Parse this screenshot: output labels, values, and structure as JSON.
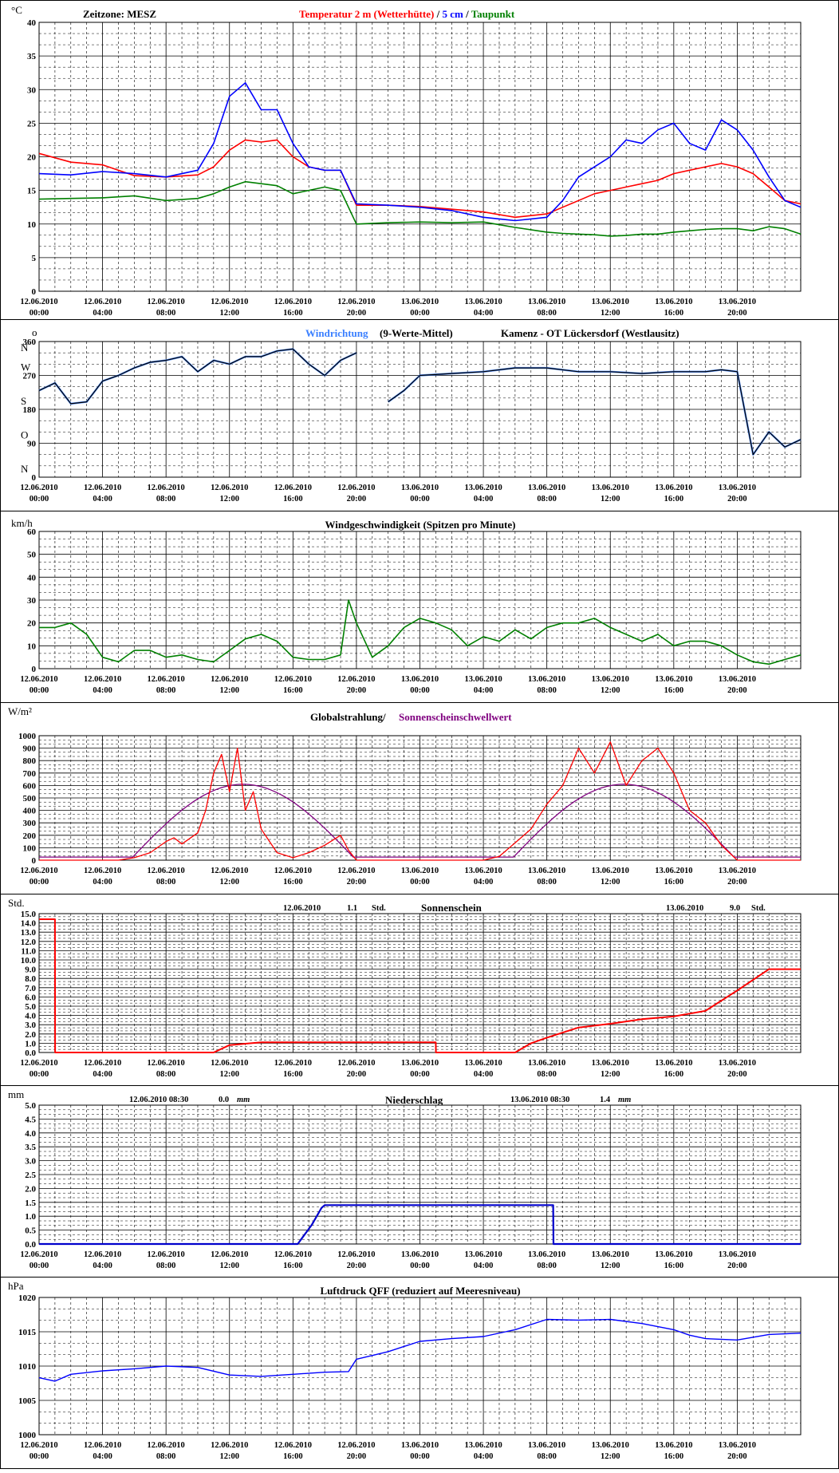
{
  "page": {
    "station": "Kamenz - OT Lückersdorf (Westlausitz)"
  },
  "x_axis": {
    "dates": [
      "12.06.2010",
      "12.06.2010",
      "12.06.2010",
      "12.06.2010",
      "12.06.2010",
      "12.06.2010",
      "13.06.2010",
      "13.06.2010",
      "13.06.2010",
      "13.06.2010",
      "13.06.2010",
      "13.06.2010"
    ],
    "times": [
      "00:00",
      "04:00",
      "08:00",
      "12:00",
      "16:00",
      "20:00",
      "00:00",
      "04:00",
      "08:00",
      "12:00",
      "16:00",
      "20:00"
    ]
  },
  "colors": {
    "temp2m": "#ff0000",
    "temp5cm": "#0000ff",
    "dewpoint": "#008000",
    "winddir_raw": "#3a7fff",
    "winddir_mean": "#000000",
    "wind": "#008000",
    "radiation": "#ff0000",
    "threshold": "#800080",
    "sunshine": "#ff0000",
    "precip": "#0000cc",
    "pressure": "#0000ff",
    "grid": "#000000"
  },
  "chart_data": [
    {
      "id": "temperature",
      "type": "line",
      "timezone_label": "Zeitzone: MESZ",
      "title_parts": [
        "Temperatur 2 m (Wetterhütte)",
        "/",
        "5 cm",
        "/",
        "Taupunkt"
      ],
      "unit": "°C",
      "ylim": [
        0,
        40
      ],
      "yticks": [
        "0",
        "5",
        "10",
        "15",
        "20",
        "25",
        "30",
        "35",
        "40"
      ],
      "grid": true,
      "x_hours": [
        0,
        2,
        4,
        6,
        8,
        10,
        11,
        12,
        13,
        14,
        15,
        16,
        17,
        18,
        19,
        20,
        22,
        24,
        26,
        28,
        30,
        32,
        33,
        34,
        35,
        36,
        37,
        38,
        39,
        40,
        41,
        42,
        43,
        44,
        45,
        46,
        47,
        48
      ],
      "series": [
        {
          "name": "Temperatur 2 m (Wetterhütte)",
          "values": [
            20.5,
            19.2,
            18.8,
            17.2,
            17.0,
            17.3,
            18.5,
            21.0,
            22.5,
            22.2,
            22.5,
            20.0,
            18.5,
            18.0,
            18.0,
            12.8,
            12.8,
            12.6,
            12.2,
            11.8,
            11.0,
            11.5,
            12.5,
            13.5,
            14.5,
            15.0,
            15.5,
            16.0,
            16.5,
            17.5,
            18.0,
            18.5,
            19.0,
            18.5,
            17.5,
            15.5,
            13.5,
            13.0
          ]
        },
        {
          "name": "5 cm",
          "values": [
            17.5,
            17.3,
            17.8,
            17.5,
            17.0,
            18.0,
            22.0,
            29.0,
            31.0,
            27.0,
            27.0,
            22.0,
            18.5,
            18.0,
            18.0,
            13.0,
            12.8,
            12.5,
            12.0,
            11.0,
            10.5,
            11.0,
            13.5,
            17.0,
            18.5,
            20.0,
            22.5,
            22.0,
            24.0,
            25.0,
            22.0,
            21.0,
            25.5,
            24.0,
            21.0,
            17.0,
            13.5,
            12.5
          ]
        },
        {
          "name": "Taupunkt",
          "values": [
            13.7,
            13.8,
            13.9,
            14.2,
            13.5,
            13.8,
            14.5,
            15.5,
            16.3,
            16.0,
            15.7,
            14.5,
            15.0,
            15.5,
            15.0,
            10.0,
            10.2,
            10.3,
            10.2,
            10.3,
            9.5,
            8.8,
            8.6,
            8.5,
            8.4,
            8.2,
            8.3,
            8.5,
            8.5,
            8.8,
            9.0,
            9.2,
            9.3,
            9.3,
            9.0,
            9.6,
            9.3,
            8.5
          ]
        }
      ]
    },
    {
      "id": "winddirection",
      "type": "line",
      "title_series": "Windrichtung",
      "title_rest": "(9-Werte-Mittel)",
      "station": "Kamenz - OT Lückersdorf (Westlausitz)",
      "unit": "N",
      "unit_suffix": "o",
      "ylim": [
        0,
        360
      ],
      "yticks": [
        "0",
        "90",
        "180",
        "270",
        "360"
      ],
      "compass": [
        {
          "v": 0,
          "t": "N"
        },
        {
          "v": 90,
          "t": "O"
        },
        {
          "v": 180,
          "t": "S"
        },
        {
          "v": 270,
          "t": "W"
        },
        {
          "v": 360,
          "t": "N"
        }
      ],
      "grid": true,
      "gaps_hours": [
        [
          20.6,
          21.2
        ]
      ],
      "x_hours": [
        0,
        1,
        2,
        3,
        4,
        5,
        6,
        7,
        8,
        9,
        10,
        11,
        12,
        13,
        14,
        15,
        16,
        17,
        18,
        19,
        20,
        21,
        22,
        23,
        24,
        26,
        28,
        30,
        32,
        34,
        36,
        38,
        40,
        42,
        43,
        44,
        45,
        46,
        47,
        48
      ],
      "series": [
        {
          "name": "Windrichtung",
          "values": [
            230,
            250,
            195,
            200,
            255,
            270,
            290,
            305,
            310,
            320,
            280,
            310,
            300,
            320,
            320,
            335,
            340,
            300,
            270,
            310,
            330,
            290,
            200,
            230,
            270,
            275,
            280,
            290,
            290,
            280,
            280,
            275,
            280,
            280,
            285,
            280,
            60,
            120,
            80,
            100
          ]
        }
      ]
    },
    {
      "id": "windspeed",
      "type": "line",
      "title": "Windgeschwindigkeit (Spitzen pro Minute)",
      "unit": "km/h",
      "ylim": [
        0,
        60
      ],
      "yticks": [
        "0",
        "10",
        "20",
        "30",
        "40",
        "50",
        "60"
      ],
      "grid": true,
      "x_hours": [
        0,
        1,
        2,
        3,
        4,
        5,
        6,
        7,
        8,
        9,
        10,
        11,
        12,
        13,
        14,
        15,
        16,
        17,
        18,
        19,
        19.5,
        20,
        21,
        22,
        23,
        24,
        25,
        26,
        27,
        28,
        29,
        30,
        31,
        32,
        33,
        34,
        35,
        36,
        37,
        38,
        39,
        40,
        41,
        42,
        43,
        44,
        45,
        46,
        47,
        48
      ],
      "series": [
        {
          "name": "Windgeschwindigkeit",
          "values": [
            18,
            18,
            20,
            15,
            5,
            3,
            8,
            8,
            5,
            6,
            4,
            3,
            8,
            13,
            15,
            12,
            5,
            4,
            4,
            6,
            30,
            20,
            5,
            10,
            18,
            22,
            20,
            17,
            10,
            14,
            12,
            17,
            13,
            18,
            20,
            20,
            22,
            18,
            15,
            12,
            15,
            10,
            12,
            12,
            10,
            6,
            3,
            2,
            4,
            6
          ]
        }
      ]
    },
    {
      "id": "radiation",
      "type": "line",
      "title_series": "Globalstrahlung/",
      "title_threshold": "Sonnenscheinschwellwert",
      "unit": "W/m²",
      "ylim": [
        0,
        1000
      ],
      "yticks": [
        "0",
        "100",
        "200",
        "300",
        "400",
        "500",
        "600",
        "700",
        "800",
        "900",
        "1000"
      ],
      "grid": true,
      "x_hours": [
        0,
        5,
        6,
        7,
        8,
        8.5,
        9,
        10,
        10.5,
        11,
        11.5,
        12,
        12.5,
        13,
        13.5,
        14,
        15,
        16,
        17,
        18,
        19,
        19.5,
        20,
        24,
        28,
        29,
        30,
        31,
        32,
        33,
        34,
        35,
        36,
        37,
        38,
        39,
        40,
        41,
        42,
        43,
        44,
        45,
        46,
        47,
        48
      ],
      "series": [
        {
          "name": "Globalstrahlung",
          "values": [
            0,
            0,
            20,
            60,
            150,
            180,
            130,
            220,
            400,
            700,
            850,
            550,
            900,
            400,
            550,
            250,
            60,
            20,
            60,
            120,
            200,
            80,
            0,
            0,
            0,
            30,
            140,
            250,
            450,
            600,
            900,
            700,
            950,
            600,
            800,
            900,
            700,
            400,
            300,
            120,
            0,
            0,
            0,
            0,
            0
          ]
        },
        {
          "name": "Sonnenscheinschwellwert",
          "values": [
            25,
            25,
            25,
            25,
            25,
            25,
            25,
            25,
            25,
            25,
            25,
            25,
            25,
            25,
            25,
            25,
            25,
            25,
            25,
            25,
            25,
            25,
            25,
            25,
            25,
            25,
            25,
            25,
            25,
            25,
            25,
            25,
            25,
            25,
            25,
            25,
            25,
            25,
            25,
            25,
            25,
            25,
            25,
            25,
            25
          ]
        }
      ],
      "threshold_curve": {
        "sunrise_hours": [
          5.9,
          29.9
        ],
        "sunset_hours": [
          19.8,
          43.8
        ],
        "peak": 610
      }
    },
    {
      "id": "sunshine",
      "type": "line",
      "title": "Sonnenschein",
      "unit": "Std.",
      "day_sums": [
        {
          "date": "12.06.2010",
          "value": "1.1",
          "unit": "Std."
        },
        {
          "date": "13.06.2010",
          "value": "9.0",
          "unit": "Std."
        }
      ],
      "ylim": [
        0,
        15
      ],
      "yticks": [
        "0.0",
        "1.0",
        "2.0",
        "3.0",
        "4.0",
        "5.0",
        "6.0",
        "7.0",
        "8.0",
        "9.0",
        "10.0",
        "11.0",
        "12.0",
        "13.0",
        "14.0",
        "15.0"
      ],
      "grid": true,
      "x_hours": [
        0,
        1,
        1.01,
        11,
        12,
        14,
        16,
        18,
        20,
        22,
        24,
        25,
        25.01,
        27,
        28,
        30,
        31,
        32,
        34,
        36,
        38,
        40,
        42,
        44,
        46,
        48
      ],
      "series": [
        {
          "name": "Sonnenschein",
          "values": [
            14.4,
            14.4,
            0,
            0,
            0.8,
            1.1,
            1.1,
            1.1,
            1.1,
            1.1,
            1.1,
            1.1,
            0,
            0,
            0,
            0,
            1.0,
            1.6,
            2.7,
            3.1,
            3.6,
            3.9,
            4.5,
            6.7,
            9.0,
            9.0
          ]
        }
      ]
    },
    {
      "id": "precipitation",
      "type": "line",
      "title": "Niederschlag",
      "unit": "mm",
      "day_sums": [
        {
          "date": "12.06.2010 08:30",
          "value": "0.0",
          "unit": "mm"
        },
        {
          "date": "13.06.2010 08:30",
          "value": "1.4",
          "unit": "mm"
        }
      ],
      "ylim": [
        0,
        5
      ],
      "yticks": [
        "0.0",
        "0.5",
        "1.0",
        "1.5",
        "2.0",
        "2.5",
        "3.0",
        "3.5",
        "4.0",
        "4.5",
        "5.0"
      ],
      "grid": true,
      "x_hours": [
        0,
        16.3,
        17.2,
        17.8,
        18,
        19,
        32.4,
        32.42,
        48
      ],
      "series": [
        {
          "name": "Niederschlag",
          "values": [
            0,
            0,
            0.7,
            1.3,
            1.4,
            1.4,
            1.4,
            0,
            0
          ]
        }
      ]
    },
    {
      "id": "pressure",
      "type": "line",
      "title": "Luftdruck QFF (reduziert auf Meeresniveau)",
      "unit": "hPa",
      "ylim": [
        1000,
        1020
      ],
      "yticks": [
        "1000",
        "1005",
        "1010",
        "1015",
        "1020"
      ],
      "grid": true,
      "x_hours": [
        0,
        1,
        2,
        4,
        6,
        8,
        10,
        12,
        14,
        16,
        18,
        19.5,
        20,
        22,
        24,
        26,
        28,
        30,
        32,
        34,
        36,
        38,
        40,
        41,
        42,
        44,
        46,
        48
      ],
      "series": [
        {
          "name": "Luftdruck QFF",
          "values": [
            1008.3,
            1007.8,
            1008.8,
            1009.3,
            1009.6,
            1010.0,
            1009.8,
            1008.7,
            1008.5,
            1008.8,
            1009.1,
            1009.2,
            1011.0,
            1012.1,
            1013.6,
            1014.0,
            1014.3,
            1015.3,
            1016.8,
            1016.7,
            1016.8,
            1016.2,
            1015.3,
            1014.5,
            1014.0,
            1013.8,
            1014.6,
            1014.8
          ]
        }
      ]
    }
  ]
}
